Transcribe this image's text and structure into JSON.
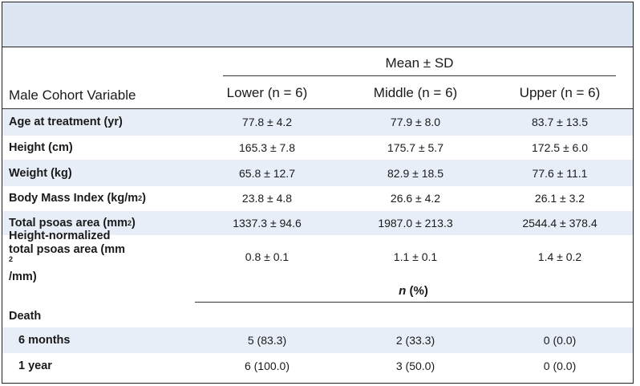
{
  "header": {
    "group_label": "Mean ± SD",
    "variable_label": "Male Cohort Variable",
    "columns": [
      "Lower (n = 6)",
      "Middle (n = 6)",
      "Upper  (n = 6)"
    ]
  },
  "rows": [
    {
      "label": "Age at treatment (yr)",
      "values": [
        "77.8 ± 4.2",
        "77.9 ± 8.0",
        "83.7 ± 13.5"
      ]
    },
    {
      "label": "Height (cm)",
      "values": [
        "165.3 ± 7.8",
        "175.7 ± 5.7",
        "172.5 ± 6.0"
      ]
    },
    {
      "label": "Weight (kg)",
      "values": [
        "65.8 ± 12.7",
        "82.9 ± 18.5",
        "77.6 ± 11.1"
      ]
    },
    {
      "label_pre": "Body Mass Index (kg/m",
      "label_sup": "2",
      "label_post": ")",
      "values": [
        "23.8 ± 4.8",
        "26.6 ± 4.2",
        "26.1 ± 3.2"
      ]
    },
    {
      "label_pre": "Total psoas area (mm",
      "label_sup": "2",
      "label_post": ")",
      "values": [
        "1337.3 ± 94.6",
        "1987.0 ± 213.3",
        "2544.4 ± 378.4"
      ]
    },
    {
      "label_line1": "Height-normalized",
      "label_line2_pre": "total psoas area (mm",
      "label_line2_sup": "2",
      "label_line2_post": "/mm)",
      "values": [
        "0.8 ± 0.1",
        "1.1 ± 0.1",
        "1.4 ± 0.2"
      ]
    }
  ],
  "count_header": {
    "n": "n",
    "pct": " (%)"
  },
  "death": {
    "label": "Death",
    "rows": [
      {
        "label": "6 months",
        "values": [
          "5 (83.3)",
          "2 (33.3)",
          "0 (0.0)"
        ]
      },
      {
        "label": "1 year",
        "values": [
          "6 (100.0)",
          "3 (50.0)",
          "0 (0.0)"
        ]
      }
    ]
  }
}
